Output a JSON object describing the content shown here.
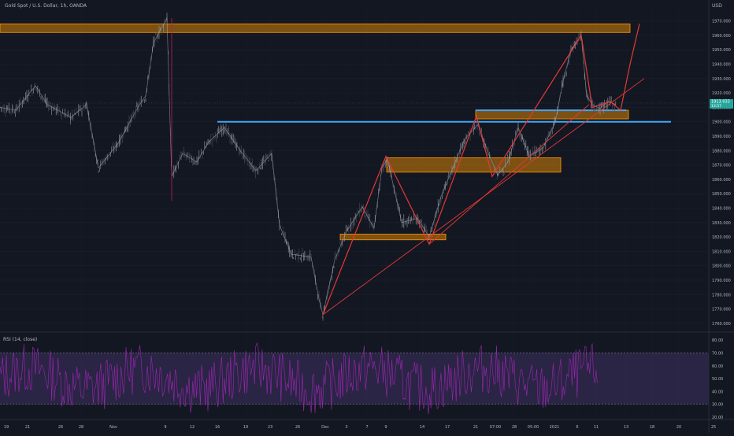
{
  "header": {
    "title": "Gold Spot / U.S. Dollar, 1h, OANDA",
    "unit": "USD"
  },
  "rsi": {
    "label": "RSI (14, close)",
    "ticks": [
      {
        "value": 20,
        "label": "20.00"
      },
      {
        "value": 30,
        "label": "30.00"
      },
      {
        "value": 40,
        "label": "40.00"
      },
      {
        "value": 50,
        "label": "50.00"
      },
      {
        "value": 60,
        "label": "60.00"
      },
      {
        "value": 70,
        "label": "70.00"
      },
      {
        "value": 80,
        "label": "80.00"
      }
    ],
    "overbought": 70,
    "oversold": 30,
    "range": [
      20,
      85
    ]
  },
  "chart_data": {
    "type": "line",
    "ylim": [
      1755,
      1978
    ],
    "y_ticks": [
      "1970.000",
      "1960.000",
      "1950.000",
      "1940.000",
      "1930.000",
      "1920.000",
      "1910.000",
      "1900.000",
      "1890.000",
      "1880.000",
      "1870.000",
      "1860.000",
      "1850.000",
      "1840.000",
      "1830.000",
      "1820.000",
      "1810.000",
      "1800.000",
      "1790.000",
      "1780.000",
      "1770.000",
      "1760.000"
    ],
    "current_price": {
      "value": 1913.0,
      "label": "1913.033",
      "sub_label": "13:57"
    },
    "x_ticks": [
      "19",
      "21",
      "26",
      "28",
      "Nov",
      "9",
      "12",
      "16",
      "19",
      "23",
      "26",
      "Dec",
      "3",
      "7",
      "9",
      "14",
      "17",
      "21",
      "07:00",
      "28",
      "05:00",
      "2021",
      "6",
      "11",
      "13",
      "18",
      "20",
      "25"
    ],
    "price_path": [
      {
        "t": 0,
        "p": 1910
      },
      {
        "t": 20,
        "p": 1908
      },
      {
        "t": 45,
        "p": 1925
      },
      {
        "t": 60,
        "p": 1912
      },
      {
        "t": 90,
        "p": 1903
      },
      {
        "t": 110,
        "p": 1912
      },
      {
        "t": 125,
        "p": 1868
      },
      {
        "t": 150,
        "p": 1885
      },
      {
        "t": 175,
        "p": 1910
      },
      {
        "t": 185,
        "p": 1918
      },
      {
        "t": 195,
        "p": 1955
      },
      {
        "t": 212,
        "p": 1972
      },
      {
        "t": 218,
        "p": 1862
      },
      {
        "t": 232,
        "p": 1878
      },
      {
        "t": 250,
        "p": 1872
      },
      {
        "t": 265,
        "p": 1886
      },
      {
        "t": 285,
        "p": 1896
      },
      {
        "t": 305,
        "p": 1880
      },
      {
        "t": 325,
        "p": 1866
      },
      {
        "t": 345,
        "p": 1878
      },
      {
        "t": 355,
        "p": 1828
      },
      {
        "t": 370,
        "p": 1808
      },
      {
        "t": 395,
        "p": 1806
      },
      {
        "t": 405,
        "p": 1777
      },
      {
        "t": 410,
        "p": 1766
      },
      {
        "t": 425,
        "p": 1804
      },
      {
        "t": 440,
        "p": 1824
      },
      {
        "t": 460,
        "p": 1841
      },
      {
        "t": 475,
        "p": 1826
      },
      {
        "t": 485,
        "p": 1868
      },
      {
        "t": 492,
        "p": 1874
      },
      {
        "t": 510,
        "p": 1830
      },
      {
        "t": 530,
        "p": 1833
      },
      {
        "t": 545,
        "p": 1820
      },
      {
        "t": 560,
        "p": 1848
      },
      {
        "t": 575,
        "p": 1868
      },
      {
        "t": 590,
        "p": 1888
      },
      {
        "t": 607,
        "p": 1898
      },
      {
        "t": 620,
        "p": 1878
      },
      {
        "t": 632,
        "p": 1863
      },
      {
        "t": 645,
        "p": 1872
      },
      {
        "t": 658,
        "p": 1896
      },
      {
        "t": 672,
        "p": 1876
      },
      {
        "t": 690,
        "p": 1882
      },
      {
        "t": 705,
        "p": 1900
      },
      {
        "t": 715,
        "p": 1928
      },
      {
        "t": 725,
        "p": 1950
      },
      {
        "t": 738,
        "p": 1960
      },
      {
        "t": 745,
        "p": 1918
      },
      {
        "t": 752,
        "p": 1912
      },
      {
        "t": 762,
        "p": 1909
      },
      {
        "t": 772,
        "p": 1914
      },
      {
        "t": 782,
        "p": 1912
      }
    ],
    "zones": [
      {
        "t0": 0,
        "t1": 800,
        "p_low": 1962,
        "p_high": 1968
      },
      {
        "t0": 491,
        "t1": 712,
        "p_low": 1865,
        "p_high": 1875
      },
      {
        "t0": 432,
        "t1": 566,
        "p_low": 1818,
        "p_high": 1822
      },
      {
        "t0": 604,
        "t1": 798,
        "p_low": 1902,
        "p_high": 1908
      }
    ],
    "levels": [
      {
        "t0": 276,
        "t1": 852,
        "p": 1900
      },
      {
        "t0": 604,
        "t1": 795,
        "p": 1908
      }
    ],
    "trendlines": [
      {
        "t0": 410,
        "p0": 1766,
        "t1": 818,
        "p1": 1930
      },
      {
        "t0": 545,
        "p0": 1815,
        "t1": 748,
        "p1": 1912
      }
    ],
    "projection": [
      {
        "t": 410,
        "p": 1766
      },
      {
        "t": 490,
        "p": 1876
      },
      {
        "t": 545,
        "p": 1815
      },
      {
        "t": 605,
        "p": 1904
      },
      {
        "t": 625,
        "p": 1862
      },
      {
        "t": 738,
        "p": 1960
      },
      {
        "t": 752,
        "p": 1910
      },
      {
        "t": 775,
        "p": 1914
      },
      {
        "t": 788,
        "p": 1908
      },
      {
        "t": 800,
        "p": 1940
      },
      {
        "t": 812,
        "p": 1968
      }
    ]
  }
}
